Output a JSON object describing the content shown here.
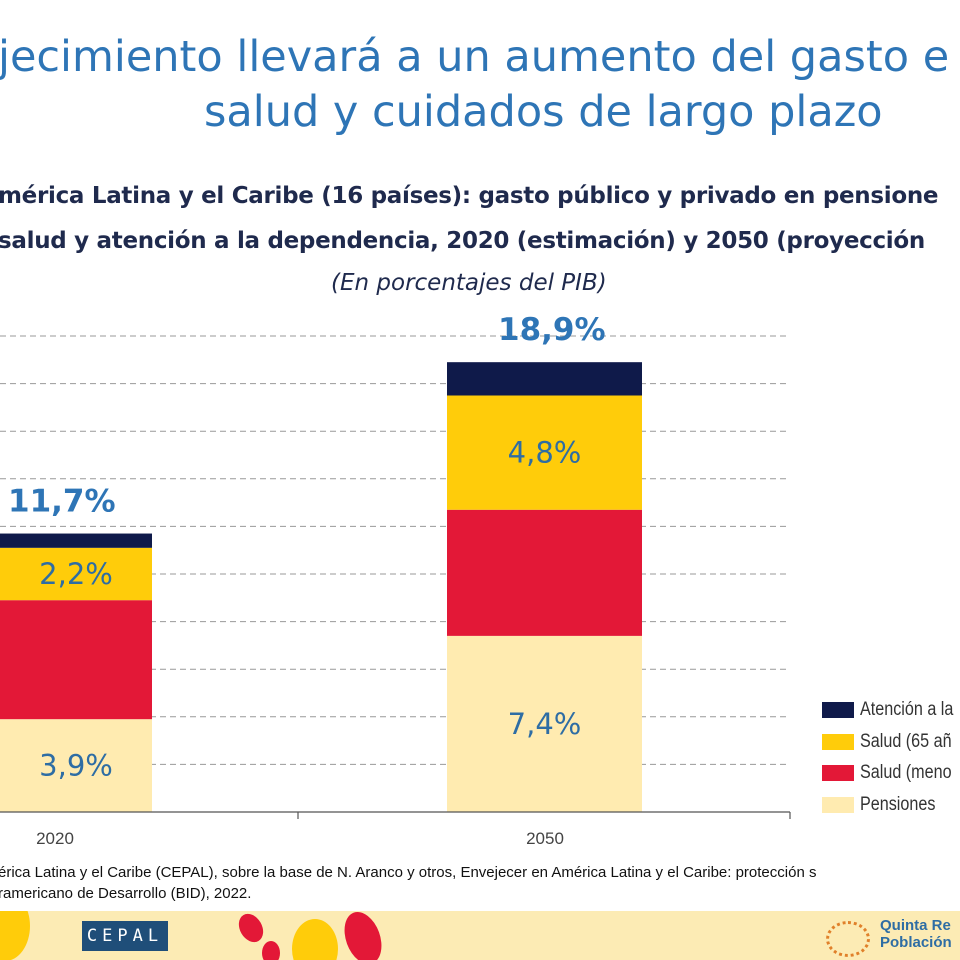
{
  "slide": {
    "title_line1": "jecimiento llevará a un aumento del gasto e",
    "title_line2": "salud y cuidados de largo plazo",
    "subtitle_line1": "mérica Latina y el Caribe (16 países): gasto público y privado en pensione",
    "subtitle_line2": "salud y atención a la dependencia, 2020 (estimación)  y 2050 (proyección",
    "unit": "(En porcentajes del PIB)",
    "source_line1": "érica Latina y el Caribe (CEPAL), sobre la base de N. Aranco y otros, Envejecer en América Latina y el Caribe: protección s",
    "source_line2": "ramericano de Desarrollo (BID), 2022.",
    "footer_logo_left": "CEPAL",
    "footer_logo_right_line1": "Quinta Re",
    "footer_logo_right_line2": "Población"
  },
  "chart_data": {
    "type": "bar",
    "stacked": true,
    "categories": [
      "2020",
      "2050"
    ],
    "ylim": [
      0,
      20
    ],
    "grid": true,
    "legend_placement": "bottom-right",
    "series": [
      {
        "name": "Pensiones",
        "color": "#FFEBB0",
        "values": [
          3.9,
          7.4
        ],
        "labels": [
          "3,9%",
          "7,4%"
        ]
      },
      {
        "name": "Salud (meno",
        "color": "#E31837",
        "values": [
          5.0,
          5.3
        ],
        "labels": [
          "",
          ""
        ]
      },
      {
        "name": "Salud (65 añ",
        "color": "#FFCC0A",
        "values": [
          2.2,
          4.8
        ],
        "labels": [
          "2,2%",
          "4,8%"
        ]
      },
      {
        "name": "Atención a la",
        "color": "#0F1A4A",
        "values": [
          0.6,
          1.4
        ],
        "labels": [
          "",
          ""
        ]
      }
    ],
    "totals": [
      11.7,
      18.9
    ],
    "total_labels": [
      "11,7%",
      "18,9%"
    ],
    "legend_order": [
      "Atención a la",
      "Salud (65 añ",
      "Salud (meno",
      "Pensiones"
    ]
  }
}
